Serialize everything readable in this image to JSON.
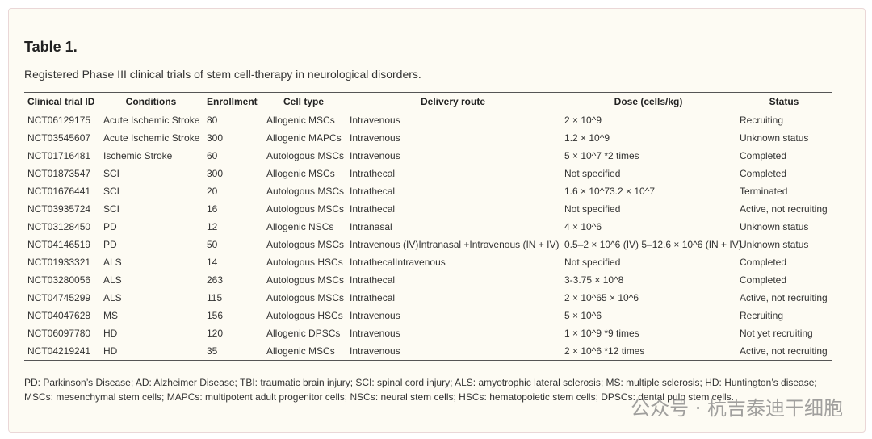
{
  "header": {
    "title": "Table 1.",
    "caption": "Registered Phase III clinical trials of stem cell-therapy in neurological disorders."
  },
  "table": {
    "columns": [
      "Clinical trial ID",
      "Conditions",
      "Enrollment",
      "Cell type",
      "Delivery route",
      "Dose (cells/kg)",
      "Status"
    ],
    "rows": [
      [
        "NCT06129175",
        "Acute Ischemic Stroke",
        80,
        "Allogenic MSCs",
        "Intravenous",
        "2 × 10^9",
        "Recruiting"
      ],
      [
        "NCT03545607",
        "Acute Ischemic Stroke",
        300,
        "Allogenic MAPCs",
        "Intravenous",
        "1.2 × 10^9",
        "Unknown status"
      ],
      [
        "NCT01716481",
        "Ischemic Stroke",
        60,
        "Autologous MSCs",
        "Intravenous",
        "5 × 10^7 *2 times",
        "Completed"
      ],
      [
        "NCT01873547",
        "SCI",
        300,
        "Allogenic MSCs",
        "Intrathecal",
        "Not specified",
        "Completed"
      ],
      [
        "NCT01676441",
        "SCI",
        20,
        "Autologous MSCs",
        "Intrathecal",
        "1.6 × 10^73.2 × 10^7",
        "Terminated"
      ],
      [
        "NCT03935724",
        "SCI",
        16,
        "Autologous MSCs",
        "Intrathecal",
        "Not specified",
        "Active, not recruiting"
      ],
      [
        "NCT03128450",
        "PD",
        12,
        "Allogenic NSCs",
        "Intranasal",
        "4 × 10^6",
        "Unknown status"
      ],
      [
        "NCT04146519",
        "PD",
        50,
        "Autologous MSCs",
        "Intravenous (IV)Intranasal +Intravenous (IN + IV)",
        "0.5–2 × 10^6 (IV) 5–12.6 × 10^6 (IN + IV)",
        "Unknown status"
      ],
      [
        "NCT01933321",
        "ALS",
        14,
        "Autologous HSCs",
        "IntrathecalIntravenous",
        "Not specified",
        "Completed"
      ],
      [
        "NCT03280056",
        "ALS",
        263,
        "Autologous MSCs",
        "Intrathecal",
        "3-3.75 × 10^8",
        "Completed"
      ],
      [
        "NCT04745299",
        "ALS",
        115,
        "Autologous MSCs",
        "Intrathecal",
        "2 × 10^65 × 10^6",
        "Active, not recruiting"
      ],
      [
        "NCT04047628",
        "MS",
        156,
        "Autologous HSCs",
        "Intravenous",
        "5 × 10^6",
        "Recruiting"
      ],
      [
        "NCT06097780",
        "HD",
        120,
        "Allogenic DPSCs",
        "Intravenous",
        "1 × 10^9 *9 times",
        "Not yet recruiting"
      ],
      [
        "NCT04219241",
        "HD",
        35,
        "Allogenic MSCs",
        "Intravenous",
        "2 × 10^6 *12 times",
        "Active, not recruiting"
      ]
    ]
  },
  "footnote": "PD: Parkinson’s Disease; AD: Alzheimer Disease; TBI: traumatic brain injury; SCI: spinal cord injury; ALS: amyotrophic lateral sclerosis; MS: multiple sclerosis; HD: Huntington’s disease; MSCs: mesenchymal stem cells; MAPCs: multipotent adult progenitor cells; NSCs: neural stem cells; HSCs: hematopoietic stem cells; DPSCs: dental pulp stem cells.",
  "watermark": "公众号 · 杭吉泰迪干细胞"
}
